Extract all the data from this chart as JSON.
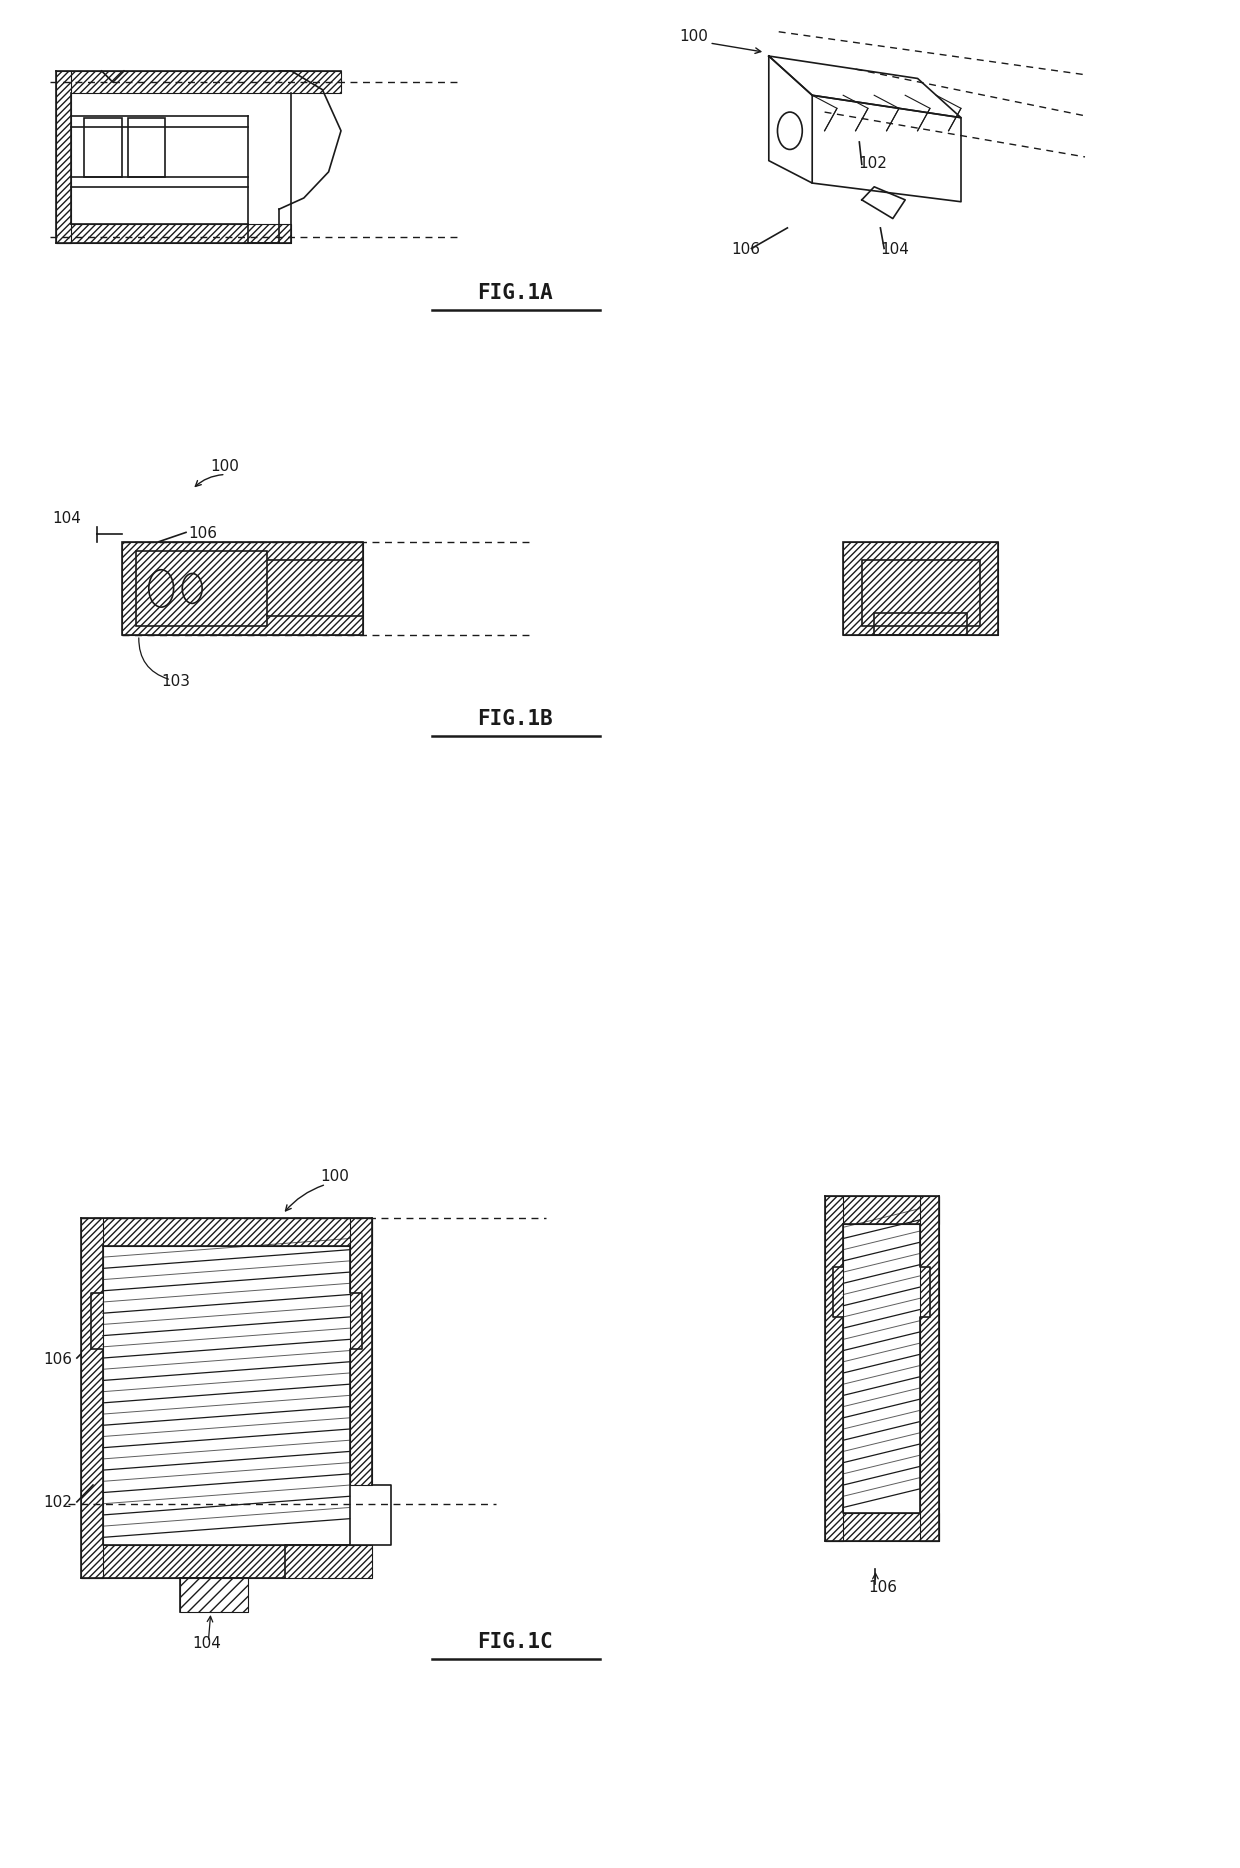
{
  "background_color": "#ffffff",
  "line_color": "#1a1a1a",
  "fig_width": 12.4,
  "fig_height": 18.68,
  "fig1a_label": "FIG.1A",
  "fig1b_label": "FIG.1B",
  "fig1c_label": "FIG.1C"
}
